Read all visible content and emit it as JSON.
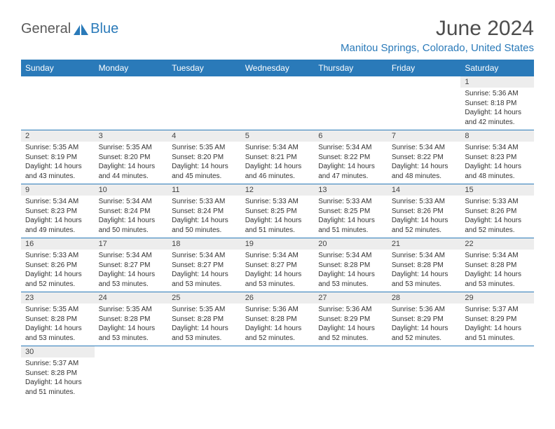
{
  "logo": {
    "general": "General",
    "blue": "Blue"
  },
  "title": "June 2024",
  "location": "Manitou Springs, Colorado, United States",
  "colors": {
    "accent": "#2a7ab9",
    "header_bg": "#2a7ab9",
    "daynum_bg": "#ededed"
  },
  "weekdays": [
    "Sunday",
    "Monday",
    "Tuesday",
    "Wednesday",
    "Thursday",
    "Friday",
    "Saturday"
  ],
  "weeks": [
    [
      null,
      null,
      null,
      null,
      null,
      null,
      {
        "n": "1",
        "sr": "Sunrise: 5:36 AM",
        "ss": "Sunset: 8:18 PM",
        "dl": "Daylight: 14 hours and 42 minutes."
      }
    ],
    [
      {
        "n": "2",
        "sr": "Sunrise: 5:35 AM",
        "ss": "Sunset: 8:19 PM",
        "dl": "Daylight: 14 hours and 43 minutes."
      },
      {
        "n": "3",
        "sr": "Sunrise: 5:35 AM",
        "ss": "Sunset: 8:20 PM",
        "dl": "Daylight: 14 hours and 44 minutes."
      },
      {
        "n": "4",
        "sr": "Sunrise: 5:35 AM",
        "ss": "Sunset: 8:20 PM",
        "dl": "Daylight: 14 hours and 45 minutes."
      },
      {
        "n": "5",
        "sr": "Sunrise: 5:34 AM",
        "ss": "Sunset: 8:21 PM",
        "dl": "Daylight: 14 hours and 46 minutes."
      },
      {
        "n": "6",
        "sr": "Sunrise: 5:34 AM",
        "ss": "Sunset: 8:22 PM",
        "dl": "Daylight: 14 hours and 47 minutes."
      },
      {
        "n": "7",
        "sr": "Sunrise: 5:34 AM",
        "ss": "Sunset: 8:22 PM",
        "dl": "Daylight: 14 hours and 48 minutes."
      },
      {
        "n": "8",
        "sr": "Sunrise: 5:34 AM",
        "ss": "Sunset: 8:23 PM",
        "dl": "Daylight: 14 hours and 48 minutes."
      }
    ],
    [
      {
        "n": "9",
        "sr": "Sunrise: 5:34 AM",
        "ss": "Sunset: 8:23 PM",
        "dl": "Daylight: 14 hours and 49 minutes."
      },
      {
        "n": "10",
        "sr": "Sunrise: 5:34 AM",
        "ss": "Sunset: 8:24 PM",
        "dl": "Daylight: 14 hours and 50 minutes."
      },
      {
        "n": "11",
        "sr": "Sunrise: 5:33 AM",
        "ss": "Sunset: 8:24 PM",
        "dl": "Daylight: 14 hours and 50 minutes."
      },
      {
        "n": "12",
        "sr": "Sunrise: 5:33 AM",
        "ss": "Sunset: 8:25 PM",
        "dl": "Daylight: 14 hours and 51 minutes."
      },
      {
        "n": "13",
        "sr": "Sunrise: 5:33 AM",
        "ss": "Sunset: 8:25 PM",
        "dl": "Daylight: 14 hours and 51 minutes."
      },
      {
        "n": "14",
        "sr": "Sunrise: 5:33 AM",
        "ss": "Sunset: 8:26 PM",
        "dl": "Daylight: 14 hours and 52 minutes."
      },
      {
        "n": "15",
        "sr": "Sunrise: 5:33 AM",
        "ss": "Sunset: 8:26 PM",
        "dl": "Daylight: 14 hours and 52 minutes."
      }
    ],
    [
      {
        "n": "16",
        "sr": "Sunrise: 5:33 AM",
        "ss": "Sunset: 8:26 PM",
        "dl": "Daylight: 14 hours and 52 minutes."
      },
      {
        "n": "17",
        "sr": "Sunrise: 5:34 AM",
        "ss": "Sunset: 8:27 PM",
        "dl": "Daylight: 14 hours and 53 minutes."
      },
      {
        "n": "18",
        "sr": "Sunrise: 5:34 AM",
        "ss": "Sunset: 8:27 PM",
        "dl": "Daylight: 14 hours and 53 minutes."
      },
      {
        "n": "19",
        "sr": "Sunrise: 5:34 AM",
        "ss": "Sunset: 8:27 PM",
        "dl": "Daylight: 14 hours and 53 minutes."
      },
      {
        "n": "20",
        "sr": "Sunrise: 5:34 AM",
        "ss": "Sunset: 8:28 PM",
        "dl": "Daylight: 14 hours and 53 minutes."
      },
      {
        "n": "21",
        "sr": "Sunrise: 5:34 AM",
        "ss": "Sunset: 8:28 PM",
        "dl": "Daylight: 14 hours and 53 minutes."
      },
      {
        "n": "22",
        "sr": "Sunrise: 5:34 AM",
        "ss": "Sunset: 8:28 PM",
        "dl": "Daylight: 14 hours and 53 minutes."
      }
    ],
    [
      {
        "n": "23",
        "sr": "Sunrise: 5:35 AM",
        "ss": "Sunset: 8:28 PM",
        "dl": "Daylight: 14 hours and 53 minutes."
      },
      {
        "n": "24",
        "sr": "Sunrise: 5:35 AM",
        "ss": "Sunset: 8:28 PM",
        "dl": "Daylight: 14 hours and 53 minutes."
      },
      {
        "n": "25",
        "sr": "Sunrise: 5:35 AM",
        "ss": "Sunset: 8:28 PM",
        "dl": "Daylight: 14 hours and 53 minutes."
      },
      {
        "n": "26",
        "sr": "Sunrise: 5:36 AM",
        "ss": "Sunset: 8:28 PM",
        "dl": "Daylight: 14 hours and 52 minutes."
      },
      {
        "n": "27",
        "sr": "Sunrise: 5:36 AM",
        "ss": "Sunset: 8:29 PM",
        "dl": "Daylight: 14 hours and 52 minutes."
      },
      {
        "n": "28",
        "sr": "Sunrise: 5:36 AM",
        "ss": "Sunset: 8:29 PM",
        "dl": "Daylight: 14 hours and 52 minutes."
      },
      {
        "n": "29",
        "sr": "Sunrise: 5:37 AM",
        "ss": "Sunset: 8:29 PM",
        "dl": "Daylight: 14 hours and 51 minutes."
      }
    ],
    [
      {
        "n": "30",
        "sr": "Sunrise: 5:37 AM",
        "ss": "Sunset: 8:28 PM",
        "dl": "Daylight: 14 hours and 51 minutes."
      },
      null,
      null,
      null,
      null,
      null,
      null
    ]
  ]
}
